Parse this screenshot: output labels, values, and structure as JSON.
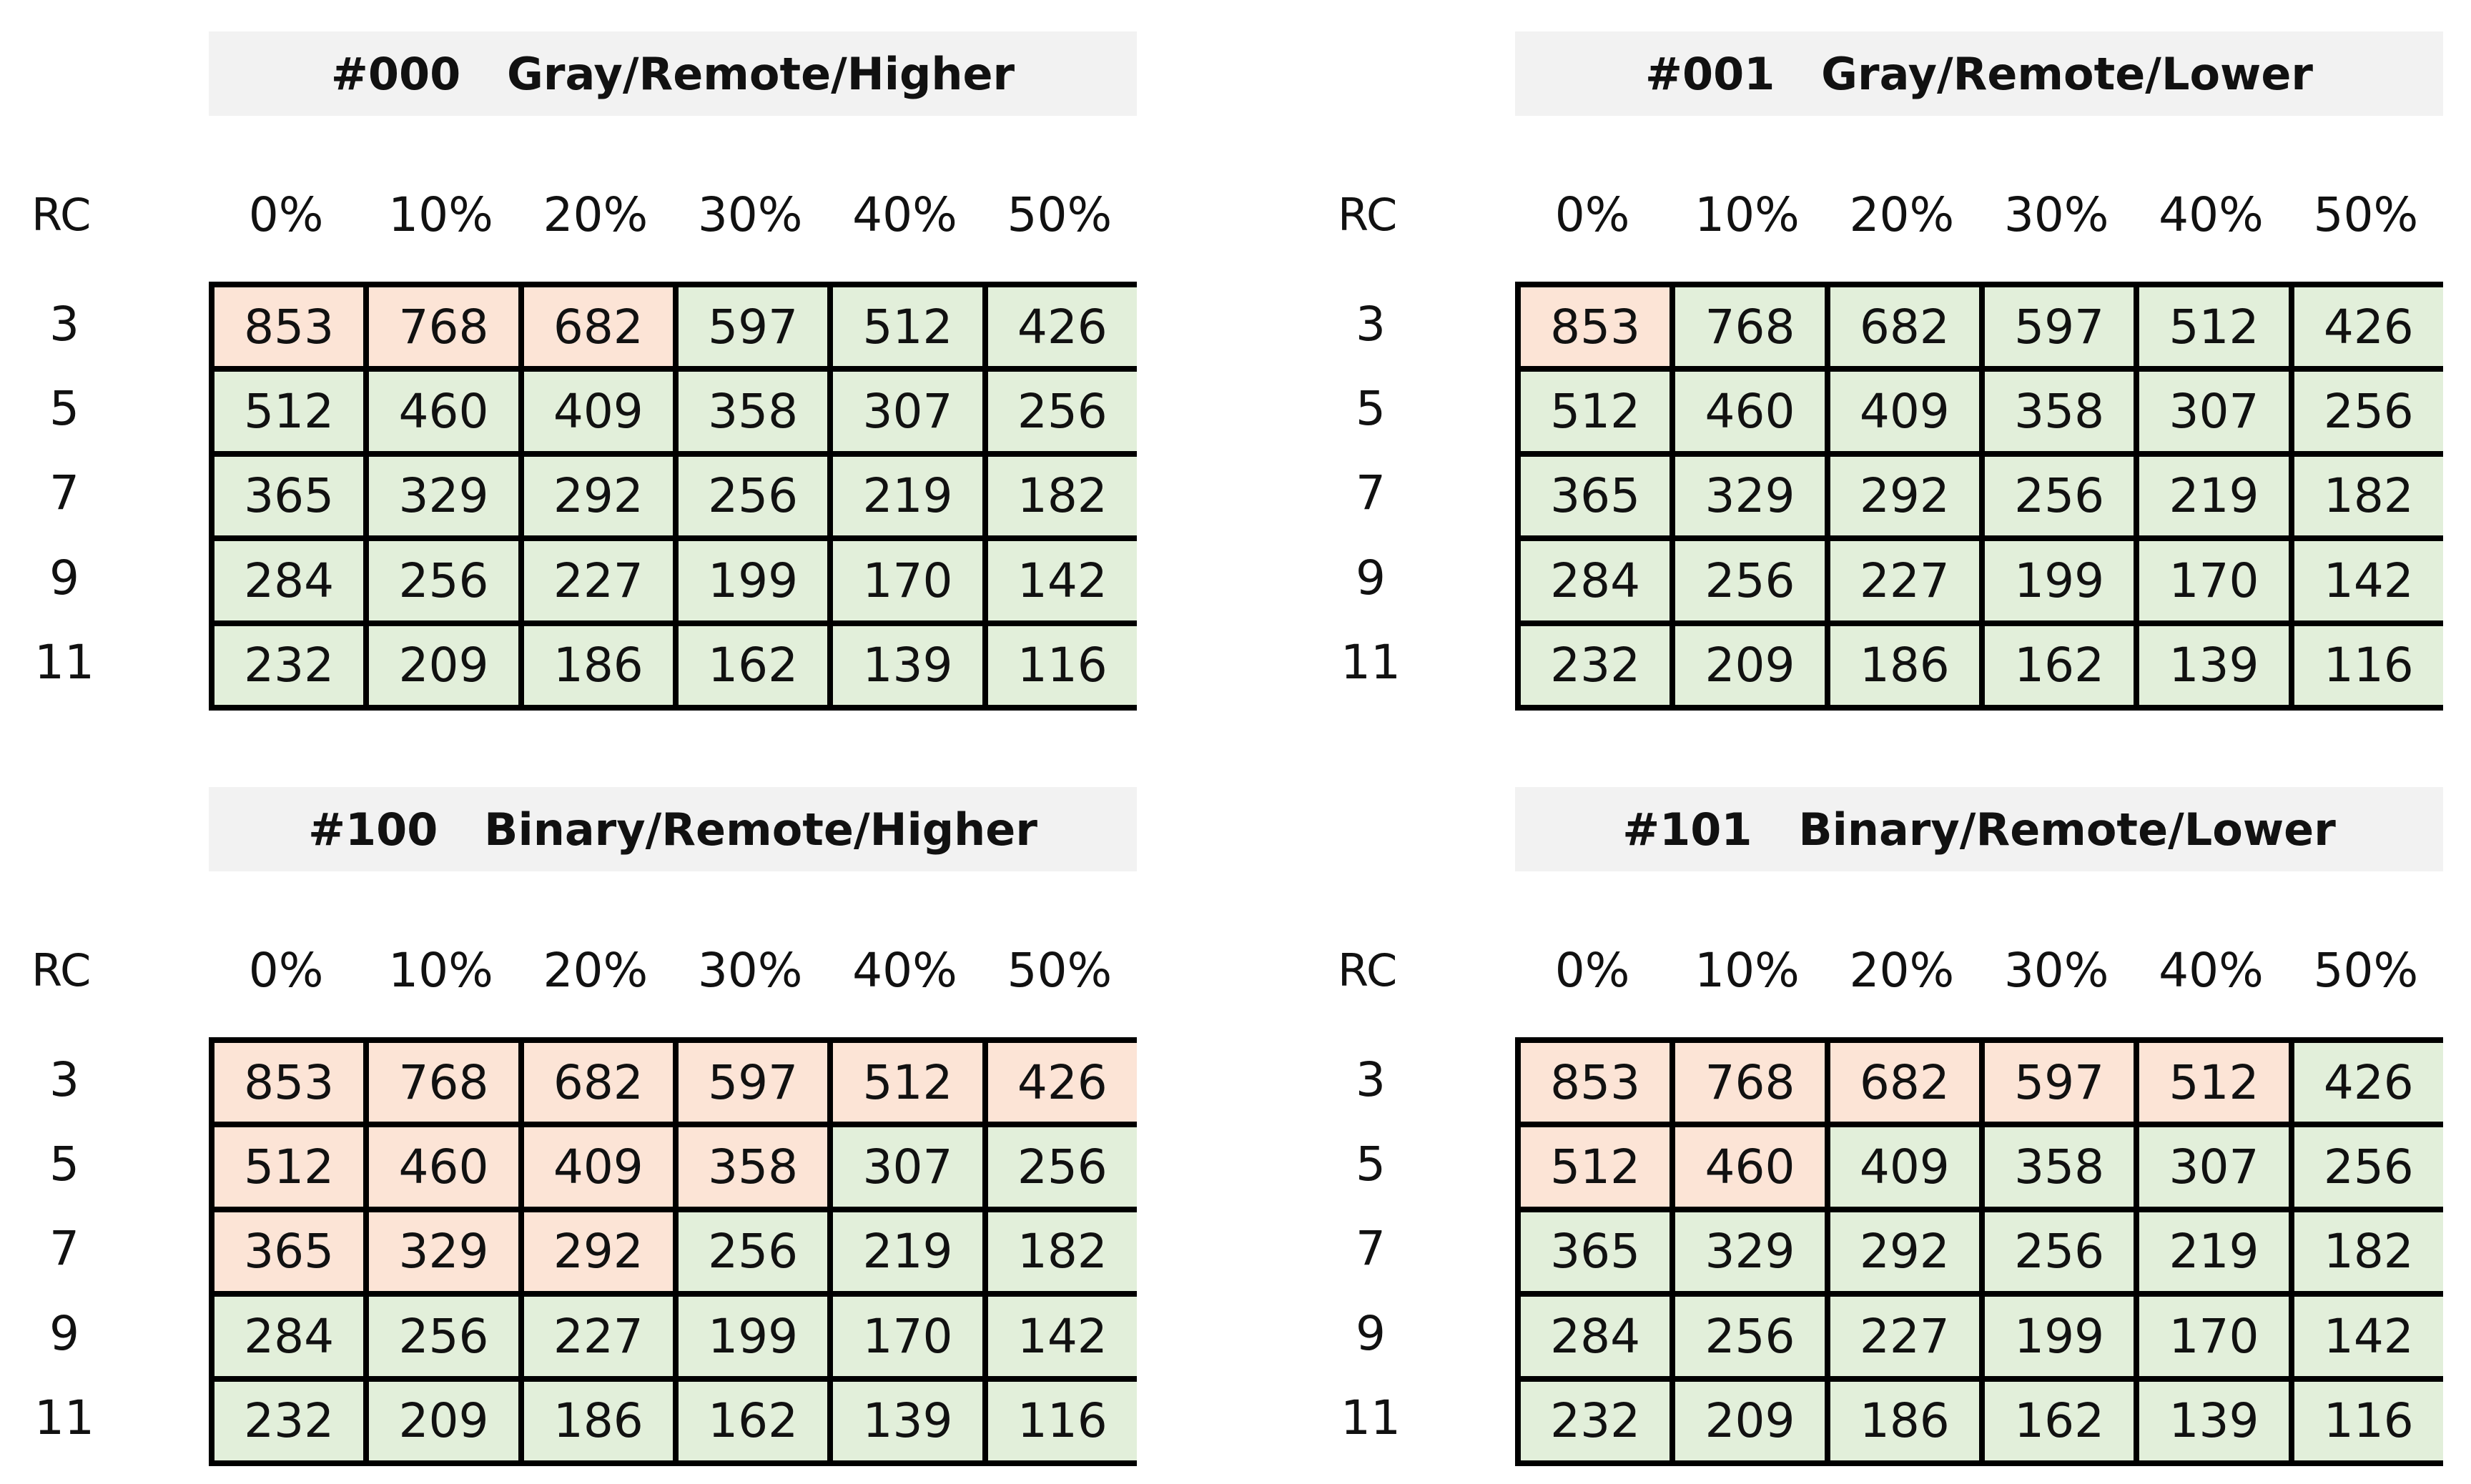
{
  "tables": [
    {
      "title": "#000   Gray/Remote/Higher",
      "row_header": "RC",
      "columns": [
        "0%",
        "10%",
        "20%",
        "30%",
        "40%",
        "50%"
      ],
      "rows": [
        {
          "label": "3",
          "values": [
            853,
            768,
            682,
            597,
            512,
            426
          ],
          "colors": [
            "#fce4d6",
            "#fce4d6",
            "#fce4d6",
            "#e2efda",
            "#e2efda",
            "#e2efda"
          ]
        },
        {
          "label": "5",
          "values": [
            512,
            460,
            409,
            358,
            307,
            256
          ],
          "colors": [
            "#e2efda",
            "#e2efda",
            "#e2efda",
            "#e2efda",
            "#e2efda",
            "#e2efda"
          ]
        },
        {
          "label": "7",
          "values": [
            365,
            329,
            292,
            256,
            219,
            182
          ],
          "colors": [
            "#e2efda",
            "#e2efda",
            "#e2efda",
            "#e2efda",
            "#e2efda",
            "#e2efda"
          ]
        },
        {
          "label": "9",
          "values": [
            284,
            256,
            227,
            199,
            170,
            142
          ],
          "colors": [
            "#e2efda",
            "#e2efda",
            "#e2efda",
            "#e2efda",
            "#e2efda",
            "#e2efda"
          ]
        },
        {
          "label": "11",
          "values": [
            232,
            209,
            186,
            162,
            139,
            116
          ],
          "colors": [
            "#e2efda",
            "#e2efda",
            "#e2efda",
            "#e2efda",
            "#e2efda",
            "#e2efda"
          ]
        }
      ]
    },
    {
      "title": "#001   Gray/Remote/Lower",
      "row_header": "RC",
      "columns": [
        "0%",
        "10%",
        "20%",
        "30%",
        "40%",
        "50%"
      ],
      "rows": [
        {
          "label": "3",
          "values": [
            853,
            768,
            682,
            597,
            512,
            426
          ],
          "colors": [
            "#fce4d6",
            "#e2efda",
            "#e2efda",
            "#e2efda",
            "#e2efda",
            "#e2efda"
          ]
        },
        {
          "label": "5",
          "values": [
            512,
            460,
            409,
            358,
            307,
            256
          ],
          "colors": [
            "#e2efda",
            "#e2efda",
            "#e2efda",
            "#e2efda",
            "#e2efda",
            "#e2efda"
          ]
        },
        {
          "label": "7",
          "values": [
            365,
            329,
            292,
            256,
            219,
            182
          ],
          "colors": [
            "#e2efda",
            "#e2efda",
            "#e2efda",
            "#e2efda",
            "#e2efda",
            "#e2efda"
          ]
        },
        {
          "label": "9",
          "values": [
            284,
            256,
            227,
            199,
            170,
            142
          ],
          "colors": [
            "#e2efda",
            "#e2efda",
            "#e2efda",
            "#e2efda",
            "#e2efda",
            "#e2efda"
          ]
        },
        {
          "label": "11",
          "values": [
            232,
            209,
            186,
            162,
            139,
            116
          ],
          "colors": [
            "#e2efda",
            "#e2efda",
            "#e2efda",
            "#e2efda",
            "#e2efda",
            "#e2efda"
          ]
        }
      ]
    },
    {
      "title": "#100   Binary/Remote/Higher",
      "row_header": "RC",
      "columns": [
        "0%",
        "10%",
        "20%",
        "30%",
        "40%",
        "50%"
      ],
      "rows": [
        {
          "label": "3",
          "values": [
            853,
            768,
            682,
            597,
            512,
            426
          ],
          "colors": [
            "#fce4d6",
            "#fce4d6",
            "#fce4d6",
            "#fce4d6",
            "#fce4d6",
            "#fce4d6"
          ]
        },
        {
          "label": "5",
          "values": [
            512,
            460,
            409,
            358,
            307,
            256
          ],
          "colors": [
            "#fce4d6",
            "#fce4d6",
            "#fce4d6",
            "#fce4d6",
            "#e2efda",
            "#e2efda"
          ]
        },
        {
          "label": "7",
          "values": [
            365,
            329,
            292,
            256,
            219,
            182
          ],
          "colors": [
            "#fce4d6",
            "#fce4d6",
            "#fce4d6",
            "#e2efda",
            "#e2efda",
            "#e2efda"
          ]
        },
        {
          "label": "9",
          "values": [
            284,
            256,
            227,
            199,
            170,
            142
          ],
          "colors": [
            "#e2efda",
            "#e2efda",
            "#e2efda",
            "#e2efda",
            "#e2efda",
            "#e2efda"
          ]
        },
        {
          "label": "11",
          "values": [
            232,
            209,
            186,
            162,
            139,
            116
          ],
          "colors": [
            "#e2efda",
            "#e2efda",
            "#e2efda",
            "#e2efda",
            "#e2efda",
            "#e2efda"
          ]
        }
      ]
    },
    {
      "title": "#101   Binary/Remote/Lower",
      "row_header": "RC",
      "columns": [
        "0%",
        "10%",
        "20%",
        "30%",
        "40%",
        "50%"
      ],
      "rows": [
        {
          "label": "3",
          "values": [
            853,
            768,
            682,
            597,
            512,
            426
          ],
          "colors": [
            "#fce4d6",
            "#fce4d6",
            "#fce4d6",
            "#fce4d6",
            "#fce4d6",
            "#e2efda"
          ]
        },
        {
          "label": "5",
          "values": [
            512,
            460,
            409,
            358,
            307,
            256
          ],
          "colors": [
            "#fce4d6",
            "#fce4d6",
            "#e2efda",
            "#e2efda",
            "#e2efda",
            "#e2efda"
          ]
        },
        {
          "label": "7",
          "values": [
            365,
            329,
            292,
            256,
            219,
            182
          ],
          "colors": [
            "#e2efda",
            "#e2efda",
            "#e2efda",
            "#e2efda",
            "#e2efda",
            "#e2efda"
          ]
        },
        {
          "label": "9",
          "values": [
            284,
            256,
            227,
            199,
            170,
            142
          ],
          "colors": [
            "#e2efda",
            "#e2efda",
            "#e2efda",
            "#e2efda",
            "#e2efda",
            "#e2efda"
          ]
        },
        {
          "label": "11",
          "values": [
            232,
            209,
            186,
            162,
            139,
            116
          ],
          "colors": [
            "#e2efda",
            "#e2efda",
            "#e2efda",
            "#e2efda",
            "#e2efda",
            "#e2efda"
          ]
        }
      ]
    }
  ]
}
